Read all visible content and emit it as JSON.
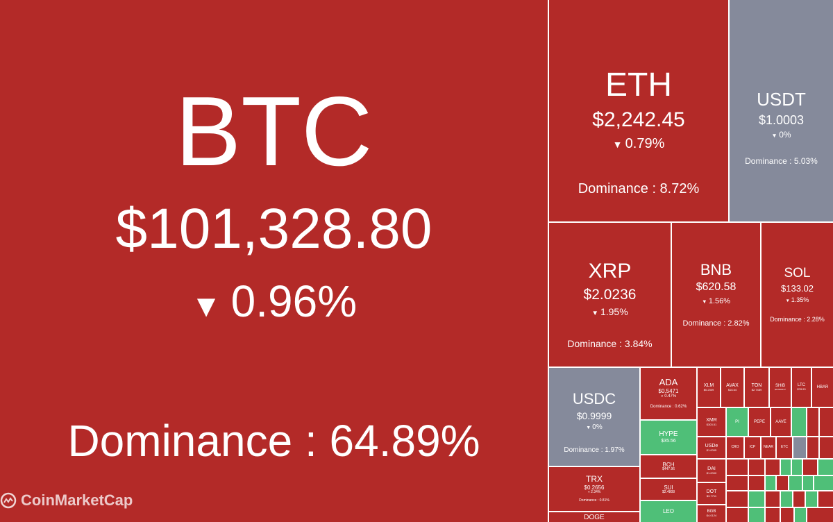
{
  "btc": {
    "symbol": "BTC",
    "price": "$101,328.80",
    "change": "0.96%",
    "dominance": "Dominance : 64.89%"
  },
  "eth": {
    "symbol": "ETH",
    "price": "$2,242.45",
    "change": "0.79%",
    "dominance": "Dominance : 8.72%"
  },
  "usdt": {
    "symbol": "USDT",
    "price": "$1.0003",
    "change": "0%",
    "dominance": "Dominance : 5.03%"
  },
  "xrp": {
    "symbol": "XRP",
    "price": "$2.0236",
    "change": "1.95%",
    "dominance": "Dominance : 3.84%"
  },
  "bnb": {
    "symbol": "BNB",
    "price": "$620.58",
    "change": "1.56%",
    "dominance": "Dominance : 2.82%"
  },
  "sol": {
    "symbol": "SOL",
    "price": "$133.02",
    "change": "1.35%",
    "dominance": "Dominance : 2.28%"
  },
  "usdc": {
    "symbol": "USDC",
    "price": "$0.9999",
    "change": "0%",
    "dominance": "Dominance : 1.97%"
  },
  "ada": {
    "symbol": "ADA",
    "price": "$0.5471",
    "change": "0.47%",
    "dominance": "Dominance : 0.62%"
  },
  "hype": {
    "symbol": "HYPE",
    "price": "$35.56"
  },
  "trx": {
    "symbol": "TRX",
    "price": "$0.2656",
    "change": "2.34%",
    "dominance": "Dominance : 0.81%"
  },
  "bch": {
    "symbol": "BCH",
    "price": "$447.96"
  },
  "sui": {
    "symbol": "SUI",
    "price": "$2.4808"
  },
  "leo": {
    "symbol": "LEO"
  },
  "doge": {
    "symbol": "DOGE"
  },
  "xlm": {
    "symbol": "XLM",
    "price": "$0.2309"
  },
  "avax": {
    "symbol": "AVAX",
    "price": "$16.64"
  },
  "ton": {
    "symbol": "TON",
    "price": "$2.7489"
  },
  "shib": {
    "symbol": "SHIB",
    "price": "$0.0000107"
  },
  "ltc": {
    "symbol": "LTC",
    "price": "$78.93"
  },
  "hbar": {
    "symbol": "HBAR"
  },
  "xmr": {
    "symbol": "XMR",
    "price": "$303.51"
  },
  "pi": {
    "symbol": "PI"
  },
  "pepe": {
    "symbol": "PEPE"
  },
  "aave": {
    "symbol": "AAVE"
  },
  "usde": {
    "symbol": "USDe",
    "price": "$1.0005"
  },
  "cro": {
    "symbol": "CRO"
  },
  "icp": {
    "symbol": "ICP"
  },
  "near": {
    "symbol": "NEAR"
  },
  "etc": {
    "symbol": "ETC"
  },
  "dai": {
    "symbol": "DAI",
    "price": "$1.0000"
  },
  "dot": {
    "symbol": "DOT",
    "price": "$3.7711"
  },
  "bgb": {
    "symbol": "BGB",
    "price": "$4.0124"
  },
  "brand": {
    "name": "CoinMarketCap"
  },
  "colors": {
    "down": "#b32a28",
    "up": "#4fbf78",
    "flat": "#858a9b"
  }
}
